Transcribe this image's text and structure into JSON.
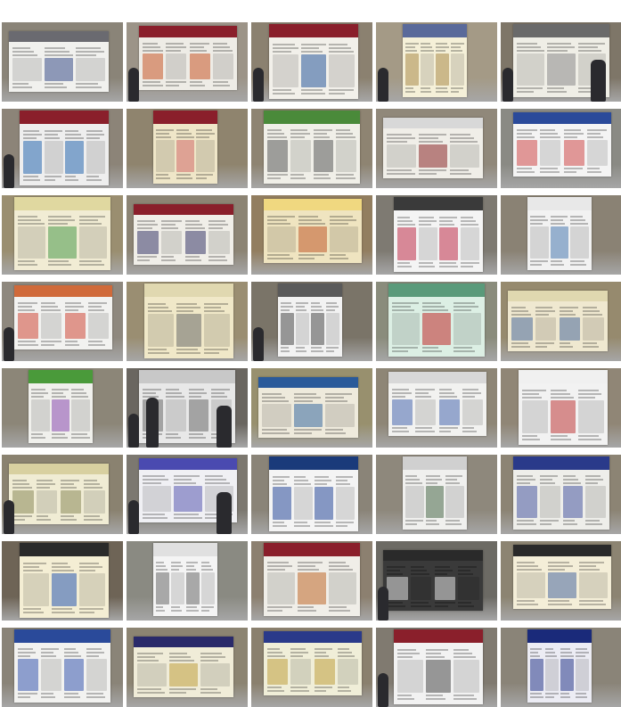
{
  "grid": {
    "columns": 5,
    "rows": 8
  },
  "tiles": [
    {
      "bg": "#8a8478",
      "poster": "#f1f1ee",
      "header": "#6a6a70",
      "accent": "#3a4f8a",
      "people": 0
    },
    {
      "bg": "#9c9488",
      "poster": "#eeece6",
      "header": "#8a1f2b",
      "accent": "#c85a2a",
      "people": 1
    },
    {
      "bg": "#8b8170",
      "poster": "#f2f0ea",
      "header": "#8a1f2b",
      "accent": "#2a5a9a",
      "people": 1
    },
    {
      "bg": "#a49a86",
      "poster": "#f5f0d8",
      "header": "#5a6a9a",
      "accent": "#a88a4a",
      "people": 1
    },
    {
      "bg": "#7e7668",
      "poster": "#efeee6",
      "header": "#6a6a6a",
      "accent": "#8a8a8a",
      "people": 2
    },
    {
      "bg": "#8c8478",
      "poster": "#eeeeee",
      "header": "#8a1f2b",
      "accent": "#2a6ab0",
      "people": 1
    },
    {
      "bg": "#8f846e",
      "poster": "#efe6c8",
      "header": "#8a1f2b",
      "accent": "#d06a6a",
      "people": 0
    },
    {
      "bg": "#8e8472",
      "poster": "#f0efe8",
      "header": "#4a8a3a",
      "accent": "#5a5a5a",
      "people": 0
    },
    {
      "bg": "#90887a",
      "poster": "#f0eee8",
      "header": "#d8d8d8",
      "accent": "#8a2a2a",
      "people": 0
    },
    {
      "bg": "#8a8a84",
      "poster": "#f4f4f4",
      "header": "#2a4a9a",
      "accent": "#d04a4a",
      "people": 0
    },
    {
      "bg": "#9a8e70",
      "poster": "#f1ecd4",
      "header": "#e0d8a0",
      "accent": "#4a9a4a",
      "people": 0
    },
    {
      "bg": "#8c8474",
      "poster": "#f0eee8",
      "header": "#8a1f2b",
      "accent": "#3a3a6a",
      "people": 0
    },
    {
      "bg": "#927e60",
      "poster": "#efe4c0",
      "header": "#f0d880",
      "accent": "#c05a2a",
      "people": 0
    },
    {
      "bg": "#7e7a72",
      "poster": "#f4f4f4",
      "header": "#3a3a3a",
      "accent": "#c0304a",
      "people": 0
    },
    {
      "bg": "#8a8274",
      "poster": "#f2f2f2",
      "header": "#e8e8e8",
      "accent": "#4a7ab0",
      "people": 0
    },
    {
      "bg": "#8e887e",
      "poster": "#f2f2f0",
      "header": "#d06a3a",
      "accent": "#d04a3a",
      "people": 1
    },
    {
      "bg": "#9a8e72",
      "poster": "#f0e8c8",
      "header": "#e0d8b0",
      "accent": "#6a6a6a",
      "people": 0
    },
    {
      "bg": "#7a7468",
      "poster": "#f2f2f2",
      "header": "#5a5a5a",
      "accent": "#4a4a4a",
      "people": 1
    },
    {
      "bg": "#8a8c7c",
      "poster": "#dcefe4",
      "header": "#5a9a7a",
      "accent": "#c02a2a",
      "people": 0
    },
    {
      "bg": "#968a6e",
      "poster": "#efe8d0",
      "header": "#e0d8b0",
      "accent": "#4a6a9a",
      "people": 0
    },
    {
      "bg": "#8c8678",
      "poster": "#f0f0ec",
      "header": "#4a9a3a",
      "accent": "#8a4ab0",
      "people": 0
    },
    {
      "bg": "#6a6660",
      "poster": "#e8e8e8",
      "header": "#c8c8c8",
      "accent": "#6a6a6a",
      "people": 3
    },
    {
      "bg": "#98906e",
      "poster": "#eeeadc",
      "header": "#2a5a9a",
      "accent": "#3a6aa0",
      "people": 0
    },
    {
      "bg": "#8e8676",
      "poster": "#f2f2f0",
      "header": "#d8d8d8",
      "accent": "#4a6ab0",
      "people": 0
    },
    {
      "bg": "#908676",
      "poster": "#f2f2f2",
      "header": "#f0f0f0",
      "accent": "#c03a3a",
      "people": 0
    },
    {
      "bg": "#8a8270",
      "poster": "#f0ecd4",
      "header": "#d8d0a0",
      "accent": "#8a8a5a",
      "people": 1
    },
    {
      "bg": "#7c7870",
      "poster": "#f0f0f4",
      "header": "#4a4ab0",
      "accent": "#5a5ab0",
      "people": 2
    },
    {
      "bg": "#8a8478",
      "poster": "#f4f4f4",
      "header": "#1a3a7a",
      "accent": "#2a4a9a",
      "people": 0
    },
    {
      "bg": "#8e887c",
      "poster": "#f0f0ee",
      "header": "#d0d0d0",
      "accent": "#4a6a4a",
      "people": 0
    },
    {
      "bg": "#8c8474",
      "poster": "#eeeeea",
      "header": "#2a3a8a",
      "accent": "#4a5aa0",
      "people": 0
    },
    {
      "bg": "#6e6456",
      "poster": "#f4eed4",
      "header": "#2a2a2a",
      "accent": "#2a5ab0",
      "people": 0
    },
    {
      "bg": "#8a8a82",
      "poster": "#f4f4f4",
      "header": "#e0e0e0",
      "accent": "#6a6a6a",
      "people": 0
    },
    {
      "bg": "#8c8070",
      "poster": "#f0eee8",
      "header": "#8a1f2b",
      "accent": "#c06a2a",
      "people": 0
    },
    {
      "bg": "#6c6a64",
      "poster": "#3a3a3a",
      "header": "#2a2a2a",
      "accent": "#e0e0e0",
      "people": 1
    },
    {
      "bg": "#8c8472",
      "poster": "#f4eed8",
      "header": "#2a2a2a",
      "accent": "#4a6aa0",
      "people": 0
    },
    {
      "bg": "#8a8478",
      "poster": "#f2f2f0",
      "header": "#2a4a9a",
      "accent": "#3a5ab0",
      "people": 0
    },
    {
      "bg": "#8c8472",
      "poster": "#f0ecd8",
      "header": "#2a2a6a",
      "accent": "#c0a040",
      "people": 0
    },
    {
      "bg": "#8a806e",
      "poster": "#f0eed8",
      "header": "#2a3a8a",
      "accent": "#c0a040",
      "people": 0
    },
    {
      "bg": "#807a70",
      "poster": "#f2f2f2",
      "header": "#8a1f2b",
      "accent": "#4a4a4a",
      "people": 1
    },
    {
      "bg": "#8a8478",
      "poster": "#ececf4",
      "header": "#1a2a7a",
      "accent": "#2a3a8a",
      "people": 0
    }
  ]
}
